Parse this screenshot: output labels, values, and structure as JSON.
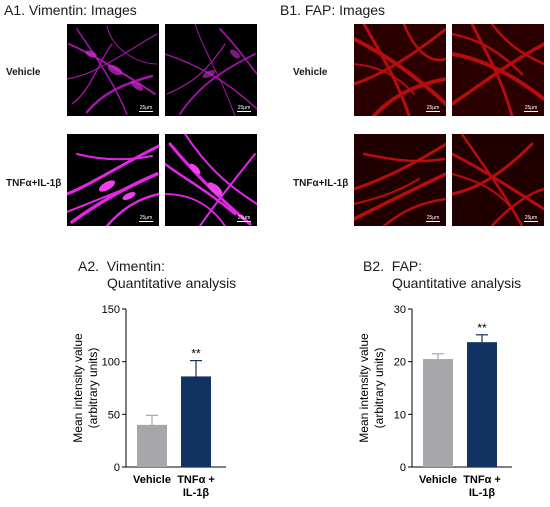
{
  "panels": {
    "A1": {
      "title": "A1. Vimentin: Images"
    },
    "B1": {
      "title": "B1. FAP: Images"
    }
  },
  "row_labels": {
    "vehicle": "Vehicle",
    "treated": "TNFα+IL-1β"
  },
  "scale_label": "25μm",
  "colors": {
    "vimentin_stain": "#e020e0",
    "fap_stain": "#d81010",
    "bar_vehicle": "#a7a6ab",
    "bar_treated": "#123262"
  },
  "chart_data": [
    {
      "type": "bar",
      "panel_code": "A2.",
      "title_line1": "Vimentin:",
      "title_line2": "Quantitative analysis",
      "ylabel_line1": "Mean intensity value",
      "ylabel_line2": "(arbitrary units)",
      "categories": [
        "Vehicle",
        "TNFα +\nIL-1β"
      ],
      "values": [
        40,
        86
      ],
      "errors": [
        9,
        15
      ],
      "significance": [
        "",
        "**"
      ],
      "ylim": [
        0,
        150
      ],
      "yticks": [
        0,
        50,
        100,
        150
      ]
    },
    {
      "type": "bar",
      "panel_code": "B2.",
      "title_line1": "FAP:",
      "title_line2": "Quantitative analysis",
      "ylabel_line1": "Mean intensity value",
      "ylabel_line2": "(arbitrary units)",
      "categories": [
        "Vehicle",
        "TNFα +\nIL-1β"
      ],
      "values": [
        20.5,
        23.7
      ],
      "errors": [
        1,
        1.4
      ],
      "significance": [
        "",
        "**"
      ],
      "ylim": [
        0,
        30
      ],
      "yticks": [
        0,
        10,
        20,
        30
      ]
    }
  ]
}
